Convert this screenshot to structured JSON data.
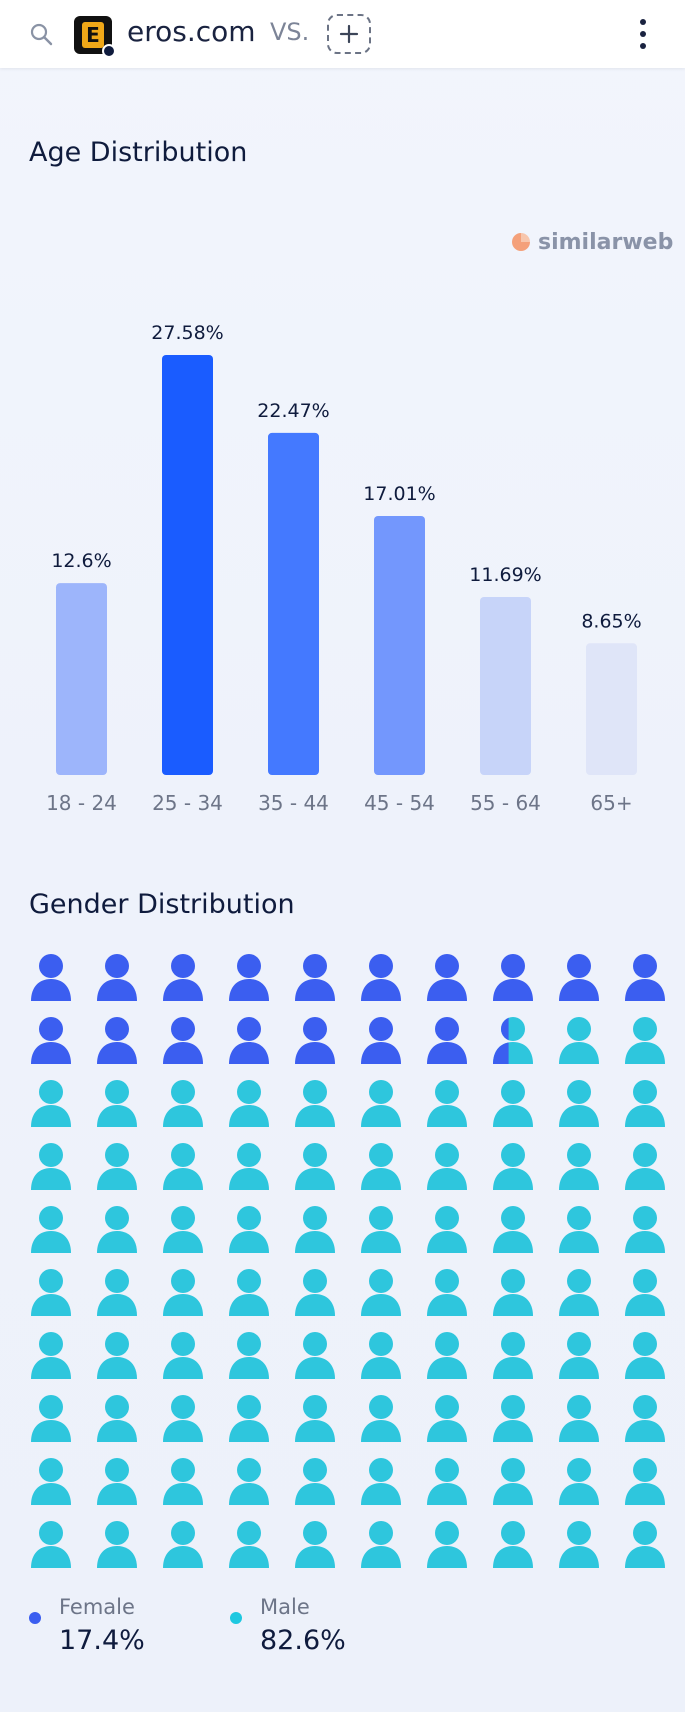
{
  "header": {
    "domain": "eros.com",
    "vs_label": "VS.",
    "logo_letter": "E",
    "icons": [
      "search-icon",
      "plus-icon",
      "more-vertical-icon"
    ]
  },
  "age_section": {
    "title": "Age Distribution",
    "brand": "similarweb"
  },
  "gender_section": {
    "title": "Gender Distribution",
    "legend": [
      {
        "name": "Female",
        "value": "17.4%",
        "color": "#3b5ef0"
      },
      {
        "name": "Male",
        "value": "82.6%",
        "color": "#1ec8e0"
      }
    ]
  },
  "chart_data": [
    {
      "type": "bar",
      "title": "Age Distribution",
      "categories": [
        "18 - 24",
        "25 - 34",
        "35 - 44",
        "45 - 54",
        "55 - 64",
        "65+"
      ],
      "values": [
        12.6,
        27.58,
        22.47,
        17.01,
        11.69,
        8.65
      ],
      "labels": [
        "12.6%",
        "27.58%",
        "22.47%",
        "17.01%",
        "11.69%",
        "8.65%"
      ],
      "colors": [
        "#9db5fb",
        "#1a5cff",
        "#4479ff",
        "#7397fd",
        "#c7d4f9",
        "#dfe5f8"
      ],
      "ylim": [
        0,
        27.58
      ],
      "grid": false
    },
    {
      "type": "pictogram",
      "title": "Gender Distribution",
      "categories": [
        "Female",
        "Male"
      ],
      "values": [
        17.4,
        82.6
      ],
      "total_icons": 100,
      "colors": [
        "#3b5ef0",
        "#2ec6dd"
      ]
    }
  ]
}
